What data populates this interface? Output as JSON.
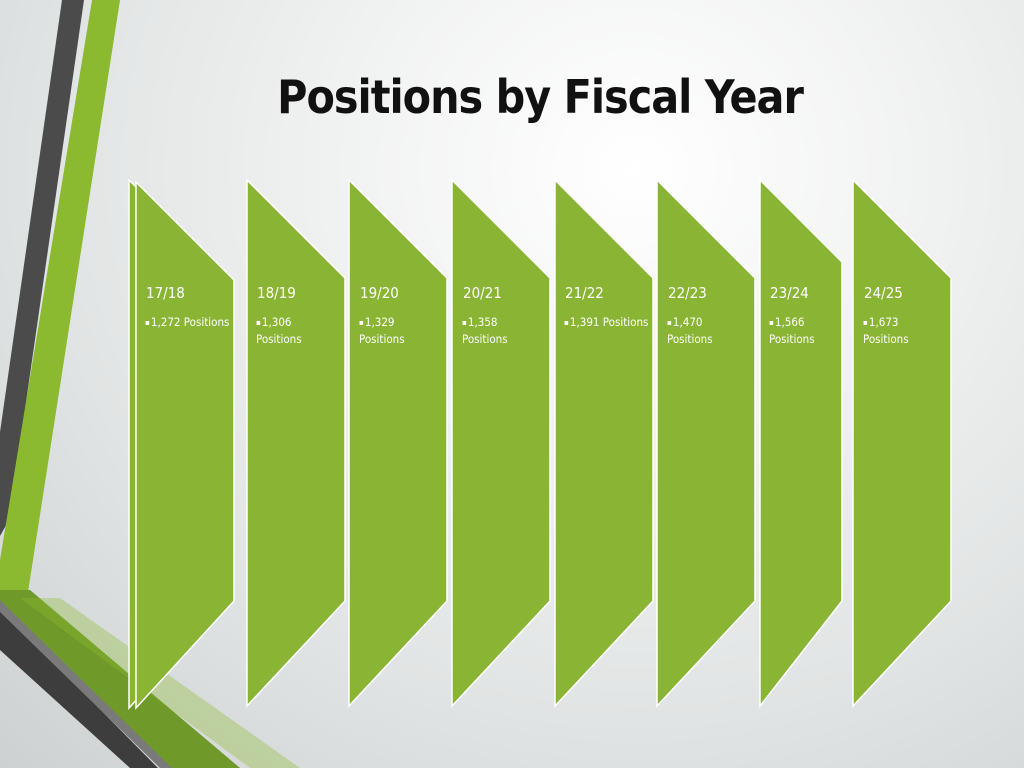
{
  "slide": {
    "title": "Positions by Fiscal Year"
  },
  "timeline": [
    {
      "year": "17/18",
      "text": "1,272 Positions"
    },
    {
      "year": "18/19",
      "text": "1,306 Positions"
    },
    {
      "year": "19/20",
      "text": "1,329 Positions"
    },
    {
      "year": "20/21",
      "text": "1,358 Positions"
    },
    {
      "year": "21/22",
      "text": "1,391 Positions"
    },
    {
      "year": "22/23",
      "text": "1,470 Positions"
    },
    {
      "year": "23/24",
      "text": "1,566 Positions"
    },
    {
      "year": "24/25",
      "text": "1,673 Positions"
    }
  ],
  "colors": {
    "panel_fill": "#8ab534",
    "panel_stroke": "#ffffff",
    "accent_green": "#8bb92f",
    "accent_dark": "#4b4b4b",
    "title": "#111111"
  }
}
